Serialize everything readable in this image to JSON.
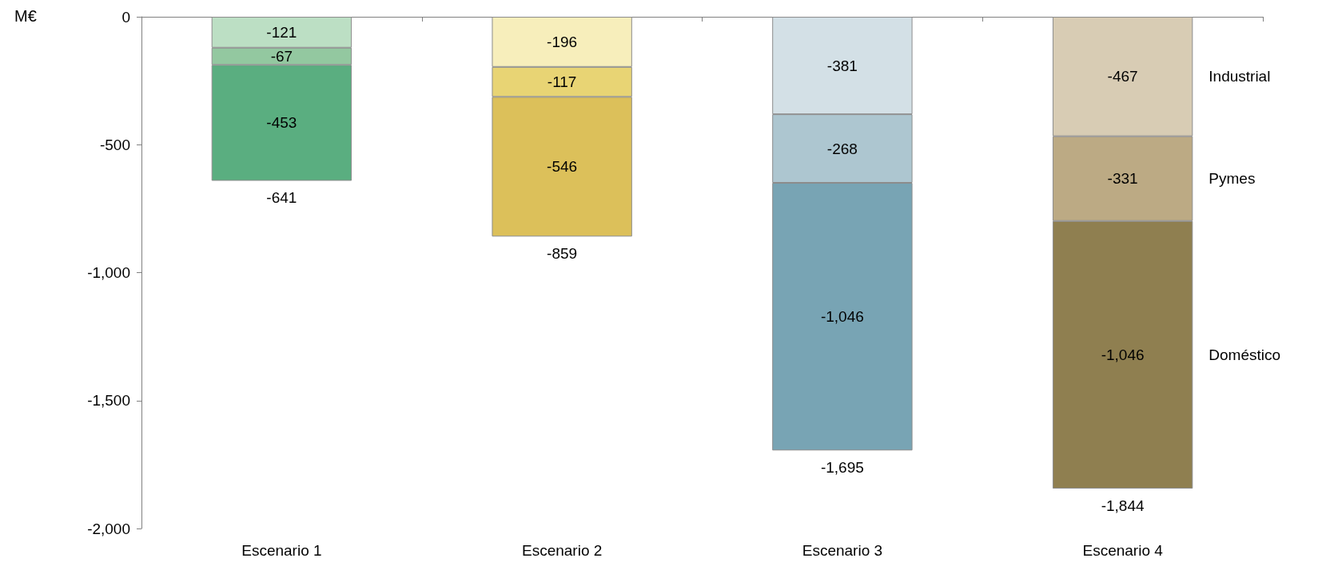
{
  "chart_data": {
    "type": "bar",
    "stacked": true,
    "ylabel": "M€",
    "categories": [
      "Escenario 1",
      "Escenario 2",
      "Escenario 3",
      "Escenario 4"
    ],
    "series": [
      {
        "name": "Industrial",
        "values": [
          -121,
          -196,
          -381,
          -467
        ],
        "value_labels": [
          "-121",
          "-196",
          "-381",
          "-467"
        ],
        "colors": [
          "#bcdfc4",
          "#f7eebb",
          "#d3e0e6",
          "#d8ccb4"
        ]
      },
      {
        "name": "Pymes",
        "values": [
          -67,
          -117,
          -268,
          -331
        ],
        "value_labels": [
          "-67",
          "-117",
          "-268",
          "-331"
        ],
        "colors": [
          "#93c8a0",
          "#e8d474",
          "#adc6d0",
          "#bcaa84"
        ]
      },
      {
        "name": "Doméstico",
        "values": [
          -453,
          -546,
          -1046,
          -1046
        ],
        "value_labels": [
          "-453",
          "-546",
          "-1,046",
          "-1,046"
        ],
        "colors": [
          "#5aae80",
          "#dcc05a",
          "#78a4b4",
          "#8f7f50"
        ]
      }
    ],
    "totals": [
      "-641",
      "-859",
      "-1,695",
      "-1,844"
    ],
    "ylim": [
      -2000,
      0
    ],
    "yticks": [
      {
        "value": -2000,
        "label": "-2,000"
      },
      {
        "value": -1500,
        "label": "-1,500"
      },
      {
        "value": -1000,
        "label": "-1,000"
      },
      {
        "value": -500,
        "label": "-500"
      },
      {
        "value": 0,
        "label": "0"
      }
    ],
    "grid": false,
    "legend": false
  }
}
